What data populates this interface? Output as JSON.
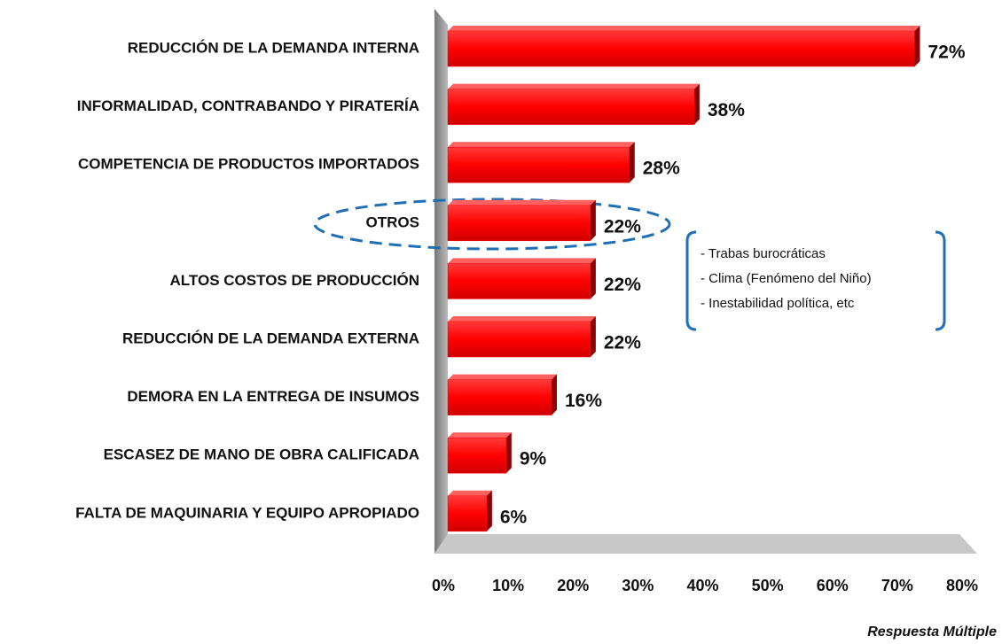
{
  "chart_data": {
    "type": "bar",
    "orientation": "horizontal",
    "categories": [
      "REDUCCIÓN DE LA DEMANDA INTERNA",
      "INFORMALIDAD, CONTRABANDO Y PIRATERÍA",
      "COMPETENCIA DE PRODUCTOS IMPORTADOS",
      "OTROS",
      "ALTOS COSTOS DE PRODUCCIÓN",
      "REDUCCIÓN DE LA DEMANDA EXTERNA",
      "DEMORA EN LA ENTREGA DE INSUMOS",
      "ESCASEZ DE MANO DE OBRA CALIFICADA",
      "FALTA DE MAQUINARIA Y EQUIPO APROPIADO"
    ],
    "values": [
      72,
      38,
      28,
      22,
      22,
      22,
      16,
      9,
      6
    ],
    "value_labels": [
      "72%",
      "38%",
      "28%",
      "22%",
      "22%",
      "22%",
      "16%",
      "9%",
      "6%"
    ],
    "color": "#ff0000",
    "xlim": [
      0,
      80
    ],
    "xticks": [
      {
        "value": 0,
        "label": "0%"
      },
      {
        "value": 10,
        "label": "10%"
      },
      {
        "value": 20,
        "label": "20%"
      },
      {
        "value": 30,
        "label": "30%"
      },
      {
        "value": 40,
        "label": "40%"
      },
      {
        "value": 50,
        "label": "50%"
      },
      {
        "value": 60,
        "label": "60%"
      },
      {
        "value": 70,
        "label": "70%"
      },
      {
        "value": 80,
        "label": "80%"
      }
    ],
    "annotations": [
      "- Trabas burocráticas",
      "- Clima (Fenómeno del Niño)",
      "- Inestabilidad política, etc"
    ],
    "note": "Respuesta Múltiple"
  }
}
